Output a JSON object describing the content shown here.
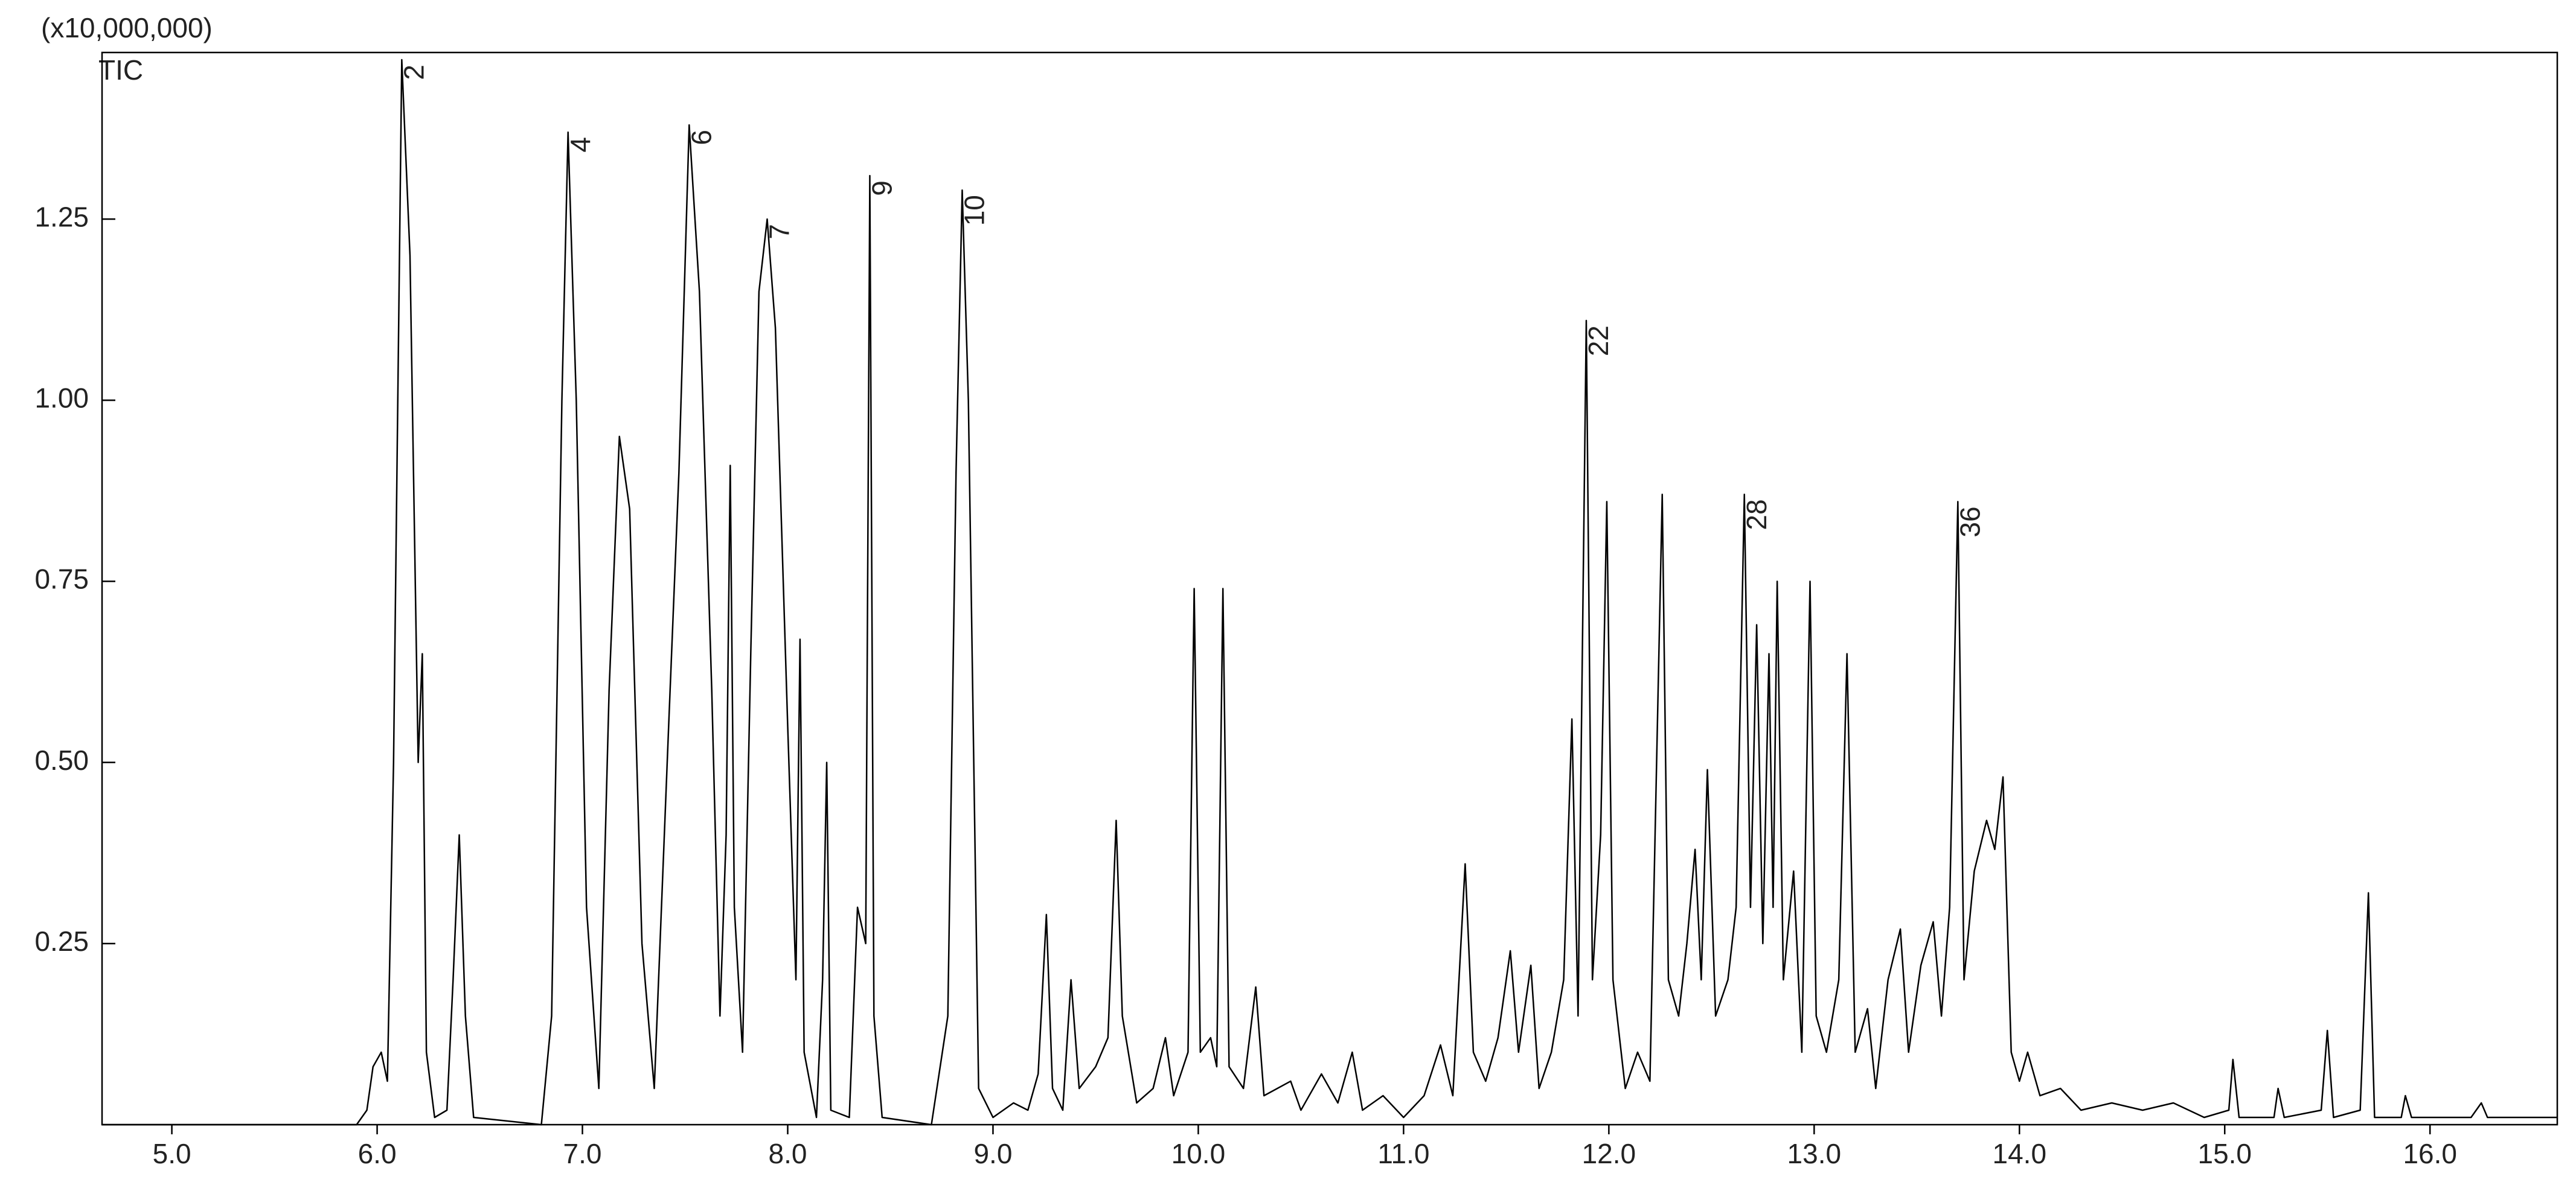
{
  "chart_data": {
    "type": "line",
    "y_axis_label": "(x10,000,000)",
    "xlim": [
      4.66,
      16.62
    ],
    "ylim": [
      0,
      1.48
    ],
    "xticks": [
      {
        "value": 5,
        "label": "5.0"
      },
      {
        "value": 6,
        "label": "6.0"
      },
      {
        "value": 7,
        "label": "7.0"
      },
      {
        "value": 8,
        "label": "8.0"
      },
      {
        "value": 9,
        "label": "9.0"
      },
      {
        "value": 10,
        "label": "10.0"
      },
      {
        "value": 11,
        "label": "11.0"
      },
      {
        "value": 12,
        "label": "12.0"
      },
      {
        "value": 13,
        "label": "13.0"
      },
      {
        "value": 14,
        "label": "14.0"
      },
      {
        "value": 15,
        "label": "15.0"
      },
      {
        "value": 16,
        "label": "16.0"
      }
    ],
    "yticks": [
      0.25,
      {
        "value": 0.5,
        "label": "0.50"
      },
      0.75,
      {
        "value": 1,
        "label": "1.00"
      },
      1.25
    ],
    "x": [
      4.66,
      5.9,
      5.95,
      5.98,
      6.02,
      6.05,
      6.08,
      6.12,
      6.16,
      6.2,
      6.22,
      6.24,
      6.28,
      6.34,
      6.37,
      6.4,
      6.43,
      6.47,
      6.8,
      6.85,
      6.9,
      6.93,
      6.97,
      7.02,
      7.08,
      7.13,
      7.18,
      7.23,
      7.29,
      7.35,
      7.42,
      7.47,
      7.52,
      7.57,
      7.63,
      7.67,
      7.7,
      7.72,
      7.74,
      7.78,
      7.82,
      7.86,
      7.9,
      7.94,
      8.0,
      8.04,
      8.06,
      8.08,
      8.14,
      8.17,
      8.19,
      8.21,
      8.3,
      8.34,
      8.38,
      8.4,
      8.42,
      8.46,
      8.7,
      8.78,
      8.82,
      8.85,
      8.88,
      8.93,
      9.0,
      9.1,
      9.17,
      9.22,
      9.26,
      9.29,
      9.34,
      9.38,
      9.42,
      9.5,
      9.56,
      9.6,
      9.63,
      9.7,
      9.78,
      9.84,
      9.88,
      9.95,
      9.98,
      10.01,
      10.06,
      10.09,
      10.12,
      10.15,
      10.22,
      10.28,
      10.32,
      10.45,
      10.5,
      10.6,
      10.68,
      10.75,
      10.8,
      10.9,
      11.0,
      11.1,
      11.18,
      11.24,
      11.3,
      11.34,
      11.4,
      11.46,
      11.52,
      11.56,
      11.62,
      11.66,
      11.72,
      11.78,
      11.82,
      11.85,
      11.89,
      11.92,
      11.96,
      11.99,
      12.02,
      12.08,
      12.14,
      12.2,
      12.26,
      12.29,
      12.34,
      12.38,
      12.42,
      12.45,
      12.48,
      12.52,
      12.58,
      12.62,
      12.66,
      12.69,
      12.72,
      12.75,
      12.78,
      12.8,
      12.82,
      12.85,
      12.9,
      12.94,
      12.98,
      13.01,
      13.06,
      13.12,
      13.16,
      13.2,
      13.26,
      13.3,
      13.36,
      13.42,
      13.46,
      13.52,
      13.58,
      13.62,
      13.66,
      13.7,
      13.73,
      13.78,
      13.84,
      13.88,
      13.92,
      13.96,
      14.0,
      14.04,
      14.1,
      14.2,
      14.3,
      14.45,
      14.6,
      14.75,
      14.9,
      15.02,
      15.04,
      15.07,
      15.24,
      15.26,
      15.29,
      15.47,
      15.5,
      15.53,
      15.66,
      15.7,
      15.73,
      15.86,
      15.88,
      15.91,
      16.2,
      16.25,
      16.28,
      16.62
    ],
    "series": [
      {
        "name": "TIC",
        "color": "#000000",
        "values": [
          0,
          0,
          0.02,
          0.08,
          0.1,
          0.06,
          0.5,
          1.47,
          1.2,
          0.5,
          0.65,
          0.1,
          0.01,
          0.02,
          0.2,
          0.4,
          0.15,
          0.01,
          0,
          0.15,
          1.0,
          1.37,
          1.0,
          0.3,
          0.05,
          0.6,
          0.95,
          0.85,
          0.25,
          0.05,
          0.55,
          0.9,
          1.38,
          1.15,
          0.6,
          0.15,
          0.4,
          0.91,
          0.3,
          0.1,
          0.65,
          1.15,
          1.25,
          1.1,
          0.55,
          0.2,
          0.67,
          0.1,
          0.01,
          0.2,
          0.5,
          0.02,
          0.01,
          0.3,
          0.25,
          1.31,
          0.15,
          0.01,
          0,
          0.15,
          0.9,
          1.29,
          1.0,
          0.05,
          0.01,
          0.03,
          0.02,
          0.07,
          0.29,
          0.05,
          0.02,
          0.2,
          0.05,
          0.08,
          0.12,
          0.42,
          0.15,
          0.03,
          0.05,
          0.12,
          0.04,
          0.1,
          0.74,
          0.1,
          0.12,
          0.08,
          0.74,
          0.08,
          0.05,
          0.19,
          0.04,
          0.06,
          0.02,
          0.07,
          0.03,
          0.1,
          0.02,
          0.04,
          0.01,
          0.04,
          0.11,
          0.04,
          0.36,
          0.1,
          0.06,
          0.12,
          0.24,
          0.1,
          0.22,
          0.05,
          0.1,
          0.2,
          0.56,
          0.15,
          1.11,
          0.2,
          0.4,
          0.86,
          0.2,
          0.05,
          0.1,
          0.06,
          0.87,
          0.2,
          0.15,
          0.25,
          0.38,
          0.2,
          0.49,
          0.15,
          0.2,
          0.3,
          0.87,
          0.3,
          0.69,
          0.25,
          0.65,
          0.3,
          0.75,
          0.2,
          0.35,
          0.1,
          0.75,
          0.15,
          0.1,
          0.2,
          0.65,
          0.1,
          0.16,
          0.05,
          0.2,
          0.27,
          0.1,
          0.22,
          0.28,
          0.15,
          0.3,
          0.86,
          0.2,
          0.35,
          0.42,
          0.38,
          0.48,
          0.1,
          0.06,
          0.1,
          0.04,
          0.05,
          0.02,
          0.03,
          0.02,
          0.03,
          0.01,
          0.02,
          0.09,
          0.01,
          0.01,
          0.05,
          0.01,
          0.02,
          0.13,
          0.01,
          0.02,
          0.32,
          0.01,
          0.01,
          0.04,
          0.01,
          0.01,
          0.03,
          0.01,
          0.01
        ]
      }
    ],
    "annotations": [
      {
        "text": "2",
        "x": 6.12,
        "y": 1.47
      },
      {
        "text": "4",
        "x": 6.93,
        "y": 1.37
      },
      {
        "text": "6",
        "x": 7.52,
        "y": 1.38
      },
      {
        "text": "7",
        "x": 7.9,
        "y": 1.25
      },
      {
        "text": "9",
        "x": 8.4,
        "y": 1.31
      },
      {
        "text": "10",
        "x": 8.85,
        "y": 1.29
      },
      {
        "text": "22",
        "x": 11.89,
        "y": 1.11
      },
      {
        "text": "28",
        "x": 12.66,
        "y": 0.87
      },
      {
        "text": "36",
        "x": 13.7,
        "y": 0.86
      }
    ]
  }
}
